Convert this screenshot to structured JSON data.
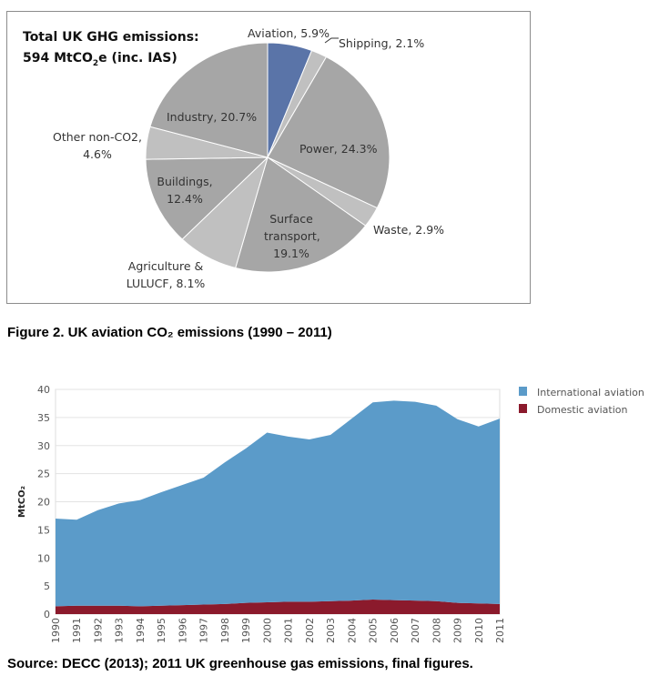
{
  "chart_data": [
    {
      "type": "pie",
      "title_lines": [
        "Total UK GHG emissions:",
        "594 MtCO",
        "2",
        "e (inc. IAS)"
      ],
      "slices": [
        {
          "label": "Aviation, 5.9%",
          "value": 5.9,
          "color": "#5a74a8"
        },
        {
          "label": "Shipping, 2.1%",
          "value": 2.1,
          "color": "#c0c0c0"
        },
        {
          "label": "Power, 24.3%",
          "value": 24.3,
          "color": "#a6a6a6"
        },
        {
          "label": "Waste, 2.9%",
          "value": 2.9,
          "color": "#c0c0c0"
        },
        {
          "label": "Surface transport, 19.1%",
          "value": 19.1,
          "color": "#a6a6a6"
        },
        {
          "label": "Agriculture & LULUCF, 8.1%",
          "value": 8.1,
          "color": "#c0c0c0"
        },
        {
          "label": "Buildings, 12.4%",
          "value": 12.4,
          "color": "#a6a6a6"
        },
        {
          "label": "Other non-CO2, 4.6%",
          "value": 4.6,
          "color": "#c0c0c0"
        },
        {
          "label": "Industry, 20.7%",
          "value": 20.7,
          "color": "#a6a6a6"
        }
      ]
    },
    {
      "type": "area",
      "stacked": true,
      "title": "Figure 2. UK aviation CO₂ emissions (1990 – 2011)",
      "ylabel": "MtCO₂",
      "ylim": [
        0,
        40
      ],
      "yticks": [
        "0",
        "5",
        "10",
        "15",
        "20",
        "25",
        "30",
        "35",
        "40"
      ],
      "grid": true,
      "legend": "top-right",
      "x": [
        "1990",
        "1991",
        "1992",
        "1993",
        "1994",
        "1995",
        "1996",
        "1997",
        "1998",
        "1999",
        "2000",
        "2001",
        "2002",
        "2003",
        "2004",
        "2005",
        "2006",
        "2007",
        "2008",
        "2009",
        "2010",
        "2011"
      ],
      "series": [
        {
          "name": "Domestic aviation",
          "color": "#8b1a2c",
          "values": [
            1.4,
            1.5,
            1.5,
            1.5,
            1.4,
            1.5,
            1.6,
            1.7,
            1.8,
            2.0,
            2.1,
            2.2,
            2.2,
            2.3,
            2.4,
            2.6,
            2.5,
            2.4,
            2.3,
            2.0,
            1.9,
            1.8
          ]
        },
        {
          "name": "International aviation",
          "color": "#5b9bc9",
          "values": [
            15.6,
            15.3,
            17.0,
            18.2,
            18.9,
            20.2,
            21.4,
            22.6,
            25.2,
            27.5,
            30.2,
            29.4,
            28.9,
            29.6,
            32.4,
            35.1,
            35.5,
            35.4,
            34.8,
            32.7,
            31.5,
            33.0
          ]
        }
      ]
    }
  ],
  "pie_label_lines": {
    "aviation": [
      "Aviation, 5.9%"
    ],
    "shipping": [
      "Shipping, 2.1%"
    ],
    "power": [
      "Power, 24.3%"
    ],
    "waste": [
      "Waste, 2.9%"
    ],
    "surface": [
      "Surface",
      "transport,",
      "19.1%"
    ],
    "agriculture": [
      "Agriculture &",
      "LULUCF, 8.1%"
    ],
    "buildings": [
      "Buildings,",
      "12.4%"
    ],
    "other": [
      "Other non-CO2,",
      "4.6%"
    ],
    "industry": [
      "Industry, 20.7%"
    ]
  },
  "source": "Source: DECC (2013); 2011 UK greenhouse gas emissions, final figures."
}
